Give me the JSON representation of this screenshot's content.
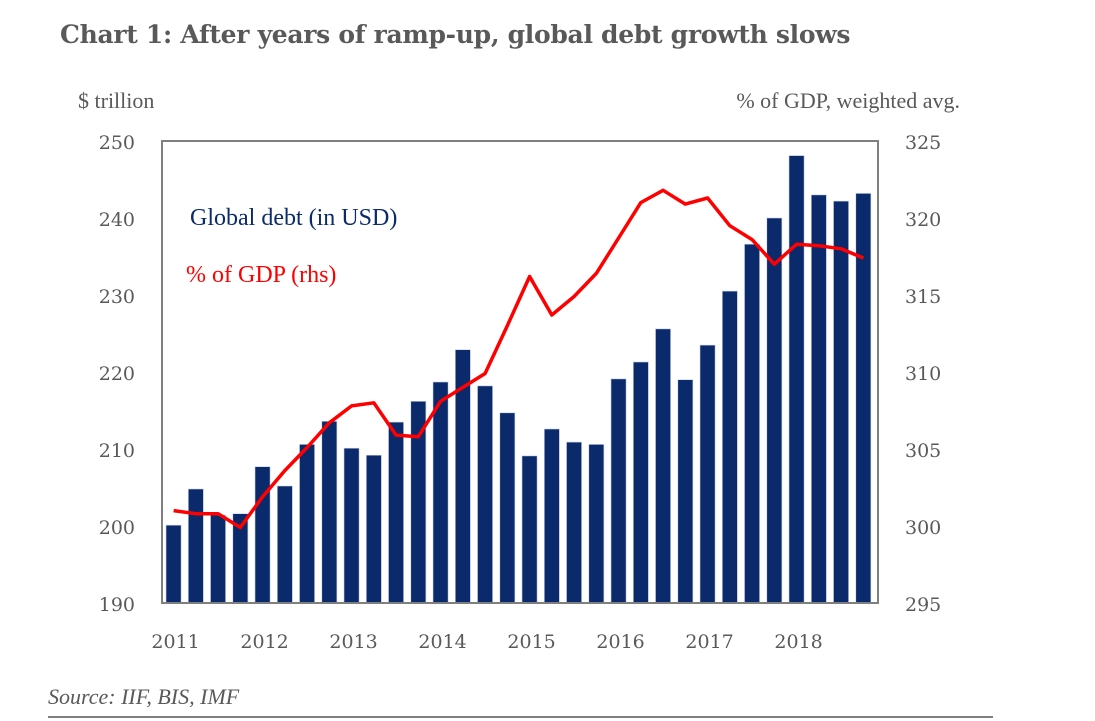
{
  "chart_data": {
    "type": "bar+line",
    "title": "Chart 1: After years of ramp-up, global debt growth slows",
    "ylabel_left": "$ trillion",
    "ylabel_right": "% of GDP, weighted avg.",
    "xlabel": "",
    "ylim_left": [
      190,
      250
    ],
    "ylim_right": [
      295,
      325
    ],
    "yticks_left": [
      250,
      240,
      230,
      220,
      210,
      200,
      190
    ],
    "yticks_right": [
      325,
      320,
      315,
      310,
      305,
      300,
      295
    ],
    "x_tick_labels": [
      "2011",
      "2012",
      "2013",
      "2014",
      "2015",
      "2016",
      "2017",
      "2018"
    ],
    "periods_per_tick": 4,
    "x": [
      "2011Q1",
      "2011Q2",
      "2011Q3",
      "2011Q4",
      "2012Q1",
      "2012Q2",
      "2012Q3",
      "2012Q4",
      "2013Q1",
      "2013Q2",
      "2013Q3",
      "2013Q4",
      "2014Q1",
      "2014Q2",
      "2014Q3",
      "2014Q4",
      "2015Q1",
      "2015Q2",
      "2015Q3",
      "2015Q4",
      "2016Q1",
      "2016Q2",
      "2016Q3",
      "2016Q4",
      "2017Q1",
      "2017Q2",
      "2017Q3",
      "2017Q4",
      "2018Q1",
      "2018Q2",
      "2018Q3",
      "2018Q4"
    ],
    "series": [
      {
        "name": "Global debt (in USD)",
        "type": "bar",
        "axis": "left",
        "color": "#0b2a6b",
        "values": [
          200.1,
          204.8,
          201.4,
          201.6,
          207.7,
          205.2,
          210.6,
          213.6,
          210.1,
          209.2,
          213.5,
          216.2,
          218.7,
          222.9,
          218.2,
          214.7,
          209.1,
          212.6,
          210.9,
          210.6,
          219.1,
          221.3,
          225.6,
          219.0,
          223.5,
          230.5,
          236.6,
          240.0,
          248.1,
          243.0,
          242.2,
          243.2
        ]
      },
      {
        "name": "% of GDP (rhs)",
        "type": "line",
        "axis": "right",
        "color": "#ff0000",
        "values": [
          301.0,
          300.8,
          300.8,
          299.9,
          301.9,
          303.6,
          305.1,
          306.7,
          307.8,
          308.0,
          305.9,
          305.8,
          308.1,
          309.0,
          309.9,
          313.0,
          316.2,
          313.7,
          314.9,
          316.4,
          318.7,
          321.0,
          321.8,
          320.9,
          321.3,
          319.5,
          318.6,
          317.0,
          318.3,
          318.2,
          318.0,
          317.4
        ]
      }
    ],
    "legend": [
      "Global debt (in USD)",
      "% of GDP (rhs)"
    ],
    "legend_position": "top-left",
    "grid": false,
    "source": "Source: IIF, BIS, IMF"
  }
}
